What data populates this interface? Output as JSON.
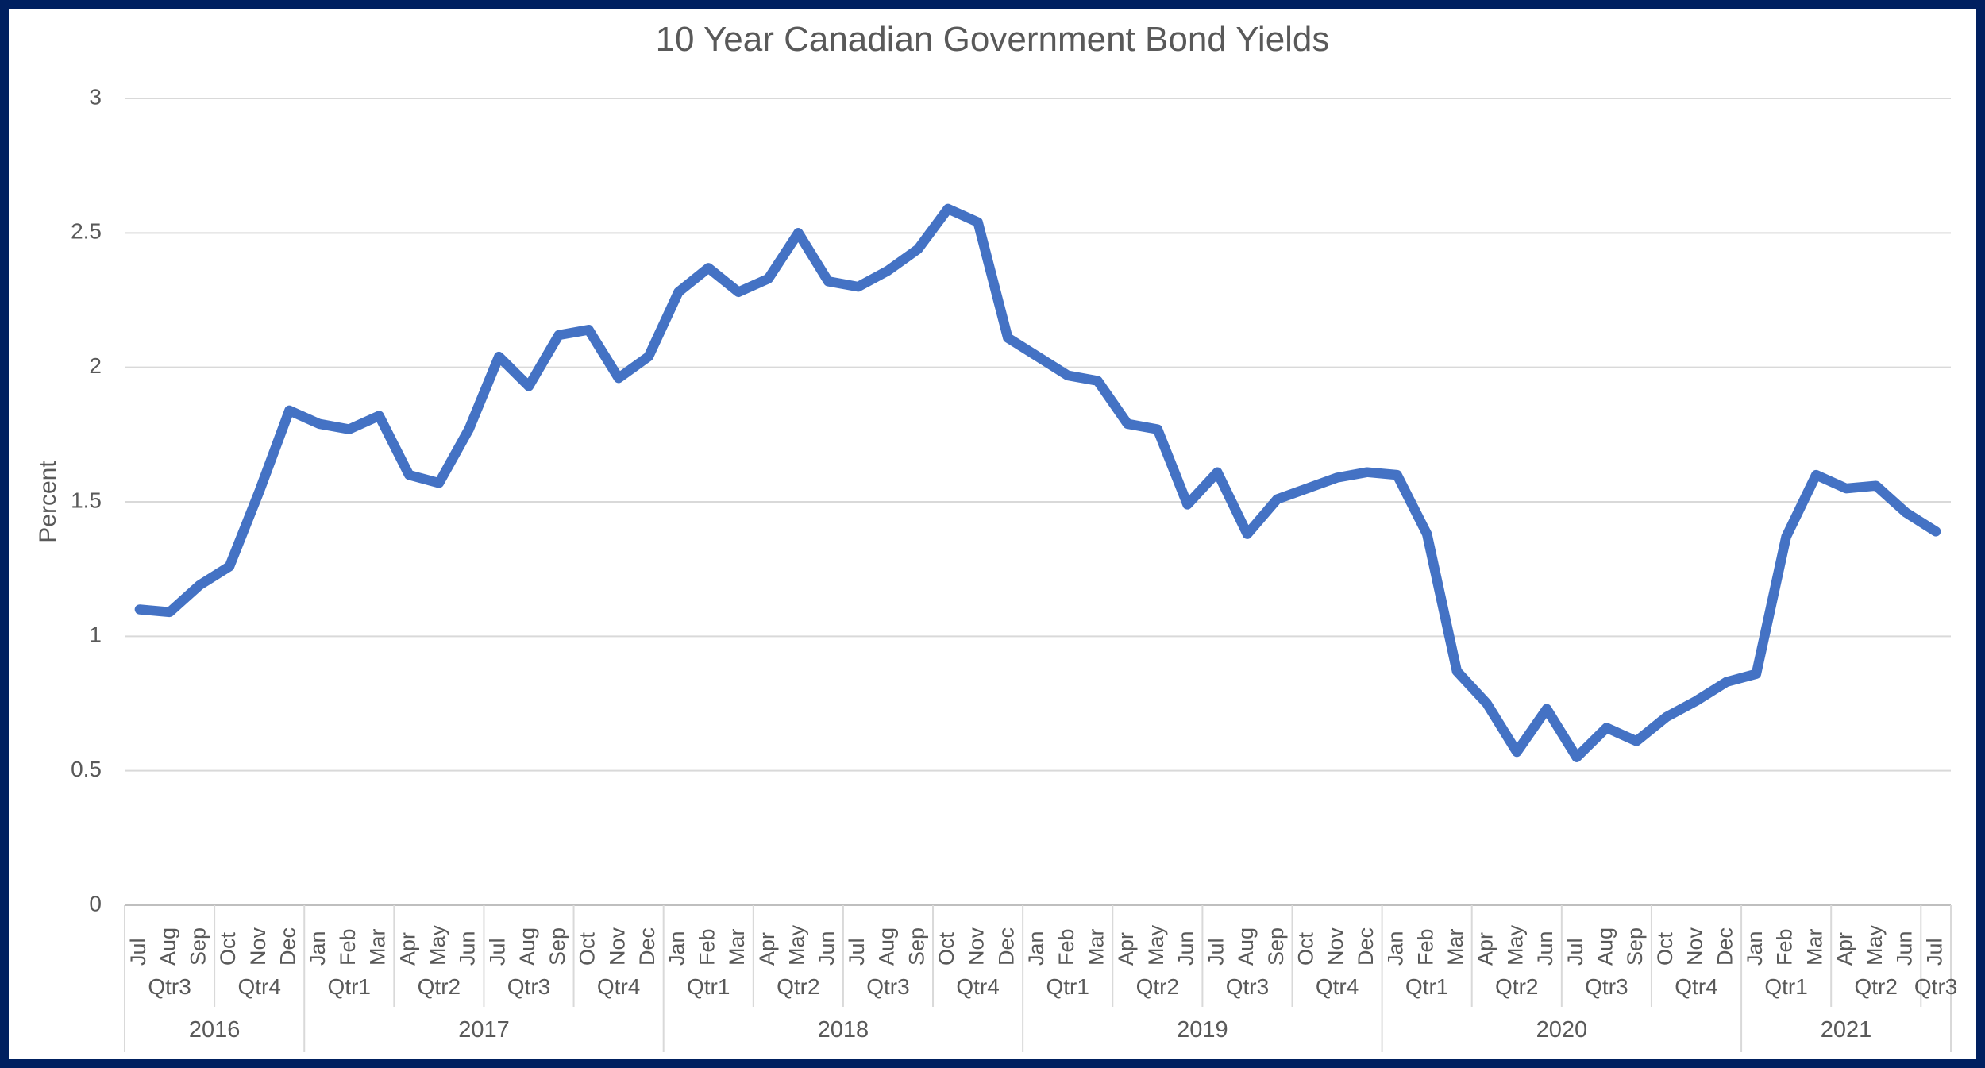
{
  "style": {
    "frame_border_color": "#002060",
    "background_color": "#FFFFFF",
    "line_color": "#4472C4",
    "gridline_color": "#D9D9D9",
    "axis_line_color": "#BFBFBF",
    "separator_color": "#D9D9D9",
    "text_color": "#595959"
  },
  "chart_data": {
    "type": "line",
    "title": "10 Year Canadian Government Bond Yields",
    "ylabel": "Percent",
    "ylim": [
      0,
      3
    ],
    "ytick_step": 0.5,
    "ytick_labels": [
      "0",
      "0.5",
      "1",
      "1.5",
      "2",
      "2.5",
      "3"
    ],
    "grid": "horizontal",
    "legend": "none",
    "categories_months": [
      "Jul",
      "Aug",
      "Sep",
      "Oct",
      "Nov",
      "Dec",
      "Jan",
      "Feb",
      "Mar",
      "Apr",
      "May",
      "Jun",
      "Jul",
      "Aug",
      "Sep",
      "Oct",
      "Nov",
      "Dec",
      "Jan",
      "Feb",
      "Mar",
      "Apr",
      "May",
      "Jun",
      "Jul",
      "Aug",
      "Sep",
      "Oct",
      "Nov",
      "Dec",
      "Jan",
      "Feb",
      "Mar",
      "Apr",
      "May",
      "Jun",
      "Jul",
      "Aug",
      "Sep",
      "Oct",
      "Nov",
      "Dec",
      "Jan",
      "Feb",
      "Mar",
      "Apr",
      "May",
      "Jun",
      "Jul",
      "Aug",
      "Sep",
      "Oct",
      "Nov",
      "Dec",
      "Jan",
      "Feb",
      "Mar",
      "Apr",
      "May",
      "Jun",
      "Jul"
    ],
    "values": [
      1.1,
      1.09,
      1.19,
      1.26,
      1.54,
      1.84,
      1.79,
      1.77,
      1.82,
      1.6,
      1.57,
      1.77,
      2.04,
      1.93,
      2.12,
      2.14,
      1.96,
      2.04,
      2.28,
      2.37,
      2.28,
      2.33,
      2.5,
      2.32,
      2.3,
      2.36,
      2.44,
      2.59,
      2.54,
      2.11,
      2.04,
      1.97,
      1.95,
      1.79,
      1.77,
      1.49,
      1.61,
      1.38,
      1.51,
      1.55,
      1.59,
      1.61,
      1.6,
      1.38,
      0.87,
      0.75,
      0.57,
      0.73,
      0.55,
      0.66,
      0.61,
      0.7,
      0.76,
      0.83,
      0.86,
      1.37,
      1.6,
      1.55,
      1.56,
      1.46,
      1.39
    ],
    "quarters": [
      {
        "label": "Qtr3",
        "span": 3
      },
      {
        "label": "Qtr4",
        "span": 3
      },
      {
        "label": "Qtr1",
        "span": 3
      },
      {
        "label": "Qtr2",
        "span": 3
      },
      {
        "label": "Qtr3",
        "span": 3
      },
      {
        "label": "Qtr4",
        "span": 3
      },
      {
        "label": "Qtr1",
        "span": 3
      },
      {
        "label": "Qtr2",
        "span": 3
      },
      {
        "label": "Qtr3",
        "span": 3
      },
      {
        "label": "Qtr4",
        "span": 3
      },
      {
        "label": "Qtr1",
        "span": 3
      },
      {
        "label": "Qtr2",
        "span": 3
      },
      {
        "label": "Qtr3",
        "span": 3
      },
      {
        "label": "Qtr4",
        "span": 3
      },
      {
        "label": "Qtr1",
        "span": 3
      },
      {
        "label": "Qtr2",
        "span": 3
      },
      {
        "label": "Qtr3",
        "span": 3
      },
      {
        "label": "Qtr4",
        "span": 3
      },
      {
        "label": "Qtr1",
        "span": 3
      },
      {
        "label": "Qtr2",
        "span": 3
      },
      {
        "label": "Qtr3",
        "span": 1
      }
    ],
    "years": [
      {
        "label": "2016",
        "span": 6
      },
      {
        "label": "2017",
        "span": 12
      },
      {
        "label": "2018",
        "span": 12
      },
      {
        "label": "2019",
        "span": 12
      },
      {
        "label": "2020",
        "span": 12
      },
      {
        "label": "2021",
        "span": 7
      }
    ]
  }
}
